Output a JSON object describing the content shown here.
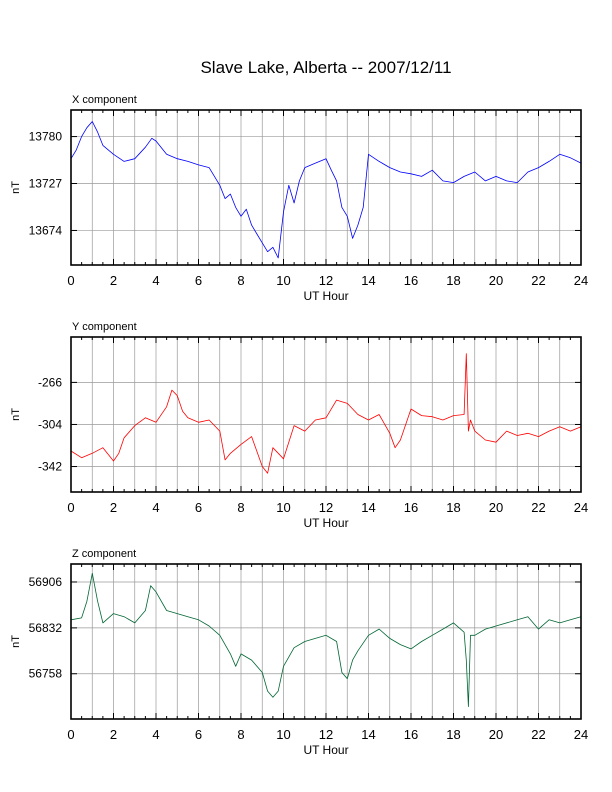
{
  "page_title": "Slave Lake, Alberta -- 2007/12/11",
  "chart_data": [
    {
      "type": "line",
      "panel_label": "X component",
      "xlabel": "UT Hour",
      "ylabel": "nT",
      "xlim": [
        0,
        24
      ],
      "ylim": [
        13635,
        13810
      ],
      "xticks": [
        0,
        2,
        4,
        6,
        8,
        10,
        12,
        14,
        16,
        18,
        20,
        22,
        24
      ],
      "yticks": [
        13674,
        13727,
        13780
      ],
      "grid": true,
      "series": [
        {
          "color": "#0000ff",
          "x": [
            0,
            0.25,
            0.5,
            0.75,
            1,
            1.25,
            1.5,
            2,
            2.5,
            3,
            3.5,
            3.8,
            4,
            4.5,
            5,
            5.5,
            6,
            6.5,
            7,
            7.25,
            7.5,
            7.75,
            8,
            8.25,
            8.5,
            8.75,
            9,
            9.25,
            9.5,
            9.75,
            10,
            10.25,
            10.5,
            10.75,
            11,
            11.5,
            12,
            12.25,
            12.5,
            12.75,
            13,
            13.25,
            13.5,
            13.75,
            14,
            14.5,
            15,
            15.5,
            16,
            16.5,
            17,
            17.5,
            18,
            18.5,
            19,
            19.5,
            20,
            20.5,
            21,
            21.5,
            22,
            22.5,
            23,
            23.5,
            24
          ],
          "y": [
            13755,
            13765,
            13780,
            13790,
            13797,
            13785,
            13770,
            13760,
            13752,
            13755,
            13768,
            13778,
            13775,
            13760,
            13755,
            13752,
            13748,
            13745,
            13725,
            13710,
            13715,
            13700,
            13690,
            13698,
            13680,
            13670,
            13660,
            13650,
            13655,
            13643,
            13695,
            13725,
            13705,
            13730,
            13745,
            13750,
            13755,
            13742,
            13730,
            13700,
            13690,
            13665,
            13680,
            13700,
            13760,
            13752,
            13745,
            13740,
            13738,
            13735,
            13742,
            13730,
            13728,
            13735,
            13740,
            13730,
            13735,
            13730,
            13728,
            13740,
            13745,
            13752,
            13760,
            13756,
            13750
          ]
        }
      ]
    },
    {
      "type": "line",
      "panel_label": "Y component",
      "xlabel": "UT Hour",
      "ylabel": "nT",
      "xlim": [
        0,
        24
      ],
      "ylim": [
        -365,
        -225
      ],
      "xticks": [
        0,
        2,
        4,
        6,
        8,
        10,
        12,
        14,
        16,
        18,
        20,
        22,
        24
      ],
      "yticks": [
        -266,
        -304,
        -342
      ],
      "grid": true,
      "series": [
        {
          "color": "#ff0000",
          "x": [
            0,
            0.5,
            1,
            1.5,
            2,
            2.25,
            2.5,
            3,
            3.5,
            4,
            4.5,
            4.75,
            5,
            5.25,
            5.5,
            6,
            6.5,
            7,
            7.25,
            7.5,
            8,
            8.5,
            9,
            9.25,
            9.5,
            10,
            10.5,
            11,
            11.5,
            12,
            12.5,
            13,
            13.5,
            14,
            14.5,
            15,
            15.25,
            15.5,
            16,
            16.5,
            17,
            17.5,
            18,
            18.5,
            18.6,
            18.7,
            18.8,
            19,
            19.5,
            20,
            20.5,
            21,
            21.5,
            22,
            22.5,
            23,
            23.5,
            24
          ],
          "y": [
            -328,
            -334,
            -330,
            -325,
            -337,
            -330,
            -316,
            -305,
            -298,
            -302,
            -288,
            -273,
            -278,
            -292,
            -298,
            -302,
            -300,
            -310,
            -336,
            -330,
            -322,
            -315,
            -342,
            -348,
            -325,
            -335,
            -305,
            -310,
            -300,
            -298,
            -282,
            -285,
            -295,
            -300,
            -295,
            -312,
            -325,
            -318,
            -290,
            -296,
            -297,
            -300,
            -296,
            -295,
            -240,
            -310,
            -300,
            -310,
            -318,
            -320,
            -310,
            -314,
            -312,
            -315,
            -310,
            -306,
            -310,
            -306
          ]
        }
      ]
    },
    {
      "type": "line",
      "panel_label": "Z component",
      "xlabel": "UT Hour",
      "ylabel": "nT",
      "xlim": [
        0,
        24
      ],
      "ylim": [
        56685,
        56935
      ],
      "xticks": [
        0,
        2,
        4,
        6,
        8,
        10,
        12,
        14,
        16,
        18,
        20,
        22,
        24
      ],
      "yticks": [
        56758,
        56832,
        56906
      ],
      "grid": true,
      "series": [
        {
          "color": "#006633",
          "x": [
            0,
            0.5,
            0.75,
            1,
            1.25,
            1.5,
            2,
            2.5,
            3,
            3.5,
            3.75,
            4,
            4.5,
            5,
            5.5,
            6,
            6.5,
            7,
            7.5,
            7.75,
            8,
            8.5,
            9,
            9.25,
            9.5,
            9.75,
            10,
            10.5,
            11,
            11.5,
            12,
            12.5,
            12.75,
            13,
            13.25,
            13.5,
            14,
            14.5,
            15,
            15.5,
            16,
            16.5,
            17,
            17.5,
            18,
            18.5,
            18.6,
            18.7,
            18.8,
            19,
            19.5,
            20,
            21,
            21.5,
            22,
            22.5,
            23,
            23.5,
            24
          ],
          "y": [
            56845,
            56848,
            56875,
            56920,
            56875,
            56840,
            56855,
            56850,
            56840,
            56860,
            56900,
            56890,
            56860,
            56855,
            56850,
            56845,
            56835,
            56820,
            56790,
            56770,
            56790,
            56780,
            56760,
            56730,
            56720,
            56730,
            56770,
            56800,
            56810,
            56815,
            56820,
            56810,
            56760,
            56750,
            56780,
            56795,
            56820,
            56830,
            56815,
            56805,
            56798,
            56810,
            56820,
            56830,
            56840,
            56825,
            56780,
            56705,
            56820,
            56820,
            56830,
            56835,
            56845,
            56850,
            56830,
            56845,
            56840,
            56845,
            56850
          ]
        }
      ]
    }
  ]
}
